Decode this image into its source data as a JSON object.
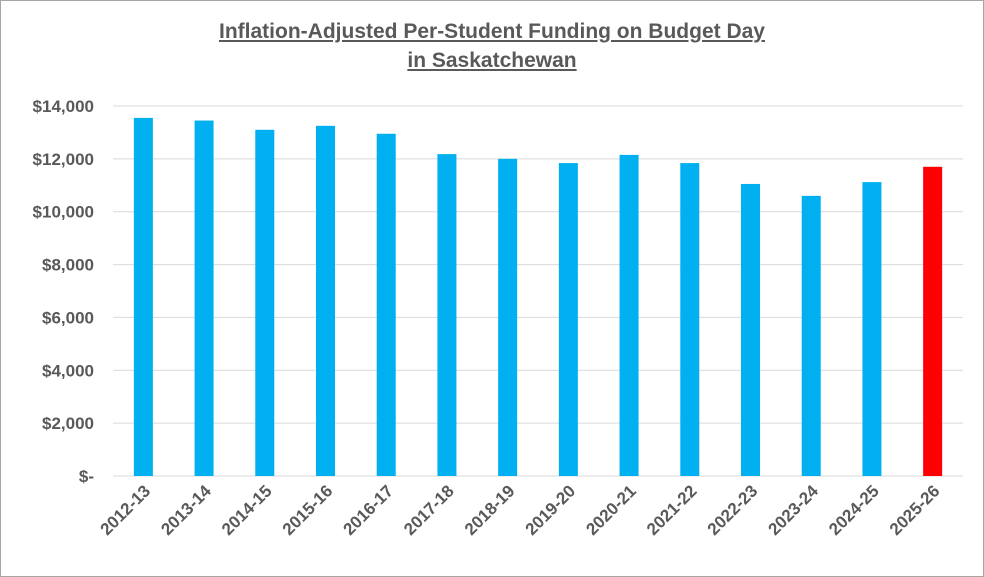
{
  "chart_data": {
    "type": "bar",
    "title_line1": "Inflation-Adjusted Per-Student Funding on Budget Day",
    "title_line2": "in Saskatchewan",
    "xlabel": "",
    "ylabel": "",
    "categories": [
      "2012-13",
      "2013-14",
      "2014-15",
      "2015-16",
      "2016-17",
      "2017-18",
      "2018-19",
      "2019-20",
      "2020-21",
      "2021-22",
      "2022-23",
      "2023-24",
      "2024-25",
      "2025-26"
    ],
    "values": [
      13550,
      13450,
      13100,
      13250,
      12950,
      12180,
      12000,
      11840,
      12150,
      11840,
      11050,
      10600,
      11120,
      11700
    ],
    "ylim": [
      0,
      14000
    ],
    "yticks": [
      0,
      2000,
      4000,
      6000,
      8000,
      10000,
      12000,
      14000
    ],
    "ytick_labels": [
      "$-",
      "$2,000",
      "$4,000",
      "$6,000",
      "$8,000",
      "$10,000",
      "$12,000",
      "$14,000"
    ],
    "grid": true,
    "legend": "none",
    "colors": {
      "default": "#00b0f0",
      "highlight": "#ff0000",
      "grid": "#d9d9d9",
      "axis": "#d9d9d9"
    },
    "highlight_index": 13
  }
}
